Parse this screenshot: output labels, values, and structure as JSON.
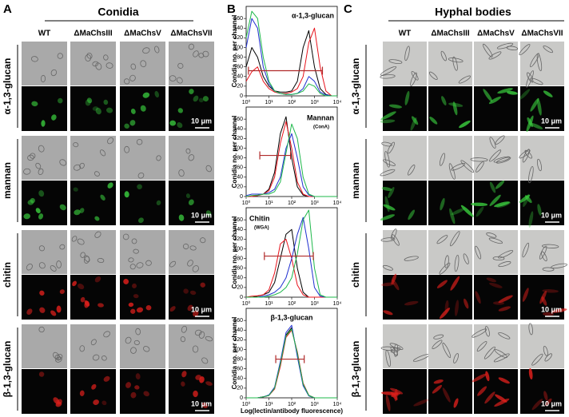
{
  "panel_a": {
    "label": "A",
    "title": "Conidia",
    "columns": [
      "WT",
      "ΔMaChsIII",
      "ΔMaChsV",
      "ΔMaChsVII"
    ],
    "rows": [
      "α-1,3-glucan",
      "mannan",
      "chitin",
      "β-1,3-glucan"
    ],
    "scale_bar": "10 μm"
  },
  "panel_b": {
    "label": "B",
    "y_label": "Conidia no. per channel",
    "x_label": "Log(lectin/antibody fluorescence)",
    "charts": [
      {
        "type": "line",
        "title": "α-1,3-glucan",
        "x": [
          0,
          0.25,
          0.5,
          0.75,
          1,
          1.25,
          1.5,
          1.75,
          2,
          2.25,
          2.5,
          2.75,
          3,
          3.25,
          3.5,
          3.75,
          4
        ],
        "xlim": [
          0,
          4
        ],
        "xticks": [
          {
            "value": 0,
            "label": "10⁰"
          },
          {
            "value": 1,
            "label": "10¹"
          },
          {
            "value": 2,
            "label": "10²"
          },
          {
            "value": 3,
            "label": "10³"
          },
          {
            "value": 4,
            "label": "10⁴"
          }
        ],
        "ylim": [
          0,
          185
        ],
        "yticks": [
          0,
          20,
          40,
          60,
          80,
          100,
          120,
          140,
          160
        ],
        "series": [
          {
            "color": "#000000",
            "values": [
              60,
              100,
              80,
              40,
              20,
              10,
              8,
              8,
              10,
              30,
              100,
              135,
              60,
              15,
              3,
              0,
              0
            ]
          },
          {
            "color": "#e8121b",
            "values": [
              30,
              50,
              60,
              30,
              15,
              8,
              5,
              5,
              8,
              15,
              40,
              110,
              140,
              60,
              10,
              0,
              0
            ]
          },
          {
            "color": "#1f2fd0",
            "values": [
              100,
              160,
              140,
              60,
              25,
              10,
              5,
              3,
              3,
              5,
              15,
              40,
              30,
              8,
              2,
              0,
              0
            ]
          },
          {
            "color": "#1db84a",
            "values": [
              120,
              175,
              160,
              80,
              30,
              10,
              5,
              3,
              3,
              5,
              10,
              25,
              20,
              5,
              0,
              0,
              0
            ]
          }
        ]
      },
      {
        "type": "line",
        "title": "Mannan",
        "subtitle": "(ConA)",
        "x": [
          0,
          0.25,
          0.5,
          0.75,
          1,
          1.25,
          1.5,
          1.75,
          2,
          2.25,
          2.5,
          2.75,
          3,
          3.25,
          3.5,
          3.75,
          4
        ],
        "xlim": [
          0,
          4
        ],
        "xticks": [
          {
            "value": 0,
            "label": "10⁰"
          },
          {
            "value": 1,
            "label": "10¹"
          },
          {
            "value": 2,
            "label": "10²"
          },
          {
            "value": 3,
            "label": "10³"
          },
          {
            "value": 4,
            "label": "10⁴"
          }
        ],
        "ylim": [
          0,
          185
        ],
        "yticks": [
          0,
          20,
          40,
          60,
          80,
          100,
          120,
          140,
          160
        ],
        "series": [
          {
            "color": "#000000",
            "values": [
              0,
              0,
              2,
              5,
              15,
              50,
              130,
              165,
              80,
              20,
              3,
              0,
              0,
              0,
              0,
              0,
              0
            ]
          },
          {
            "color": "#e8121b",
            "values": [
              0,
              0,
              2,
              5,
              12,
              40,
              110,
              155,
              100,
              30,
              5,
              0,
              0,
              0,
              0,
              0,
              0
            ]
          },
          {
            "color": "#1f2fd0",
            "values": [
              2,
              5,
              5,
              5,
              8,
              15,
              40,
              100,
              130,
              80,
              20,
              3,
              0,
              0,
              0,
              0,
              0
            ]
          },
          {
            "color": "#1db84a",
            "values": [
              0,
              2,
              3,
              5,
              5,
              10,
              30,
              90,
              150,
              120,
              40,
              5,
              0,
              0,
              0,
              0,
              0
            ]
          }
        ]
      },
      {
        "type": "line",
        "title": "Chitin",
        "subtitle": "(WGA)",
        "x": [
          0,
          0.25,
          0.5,
          0.75,
          1,
          1.25,
          1.5,
          1.75,
          2,
          2.25,
          2.5,
          2.75,
          3,
          3.25,
          3.5,
          3.75,
          4
        ],
        "xlim": [
          0,
          4
        ],
        "xticks": [
          {
            "value": 0,
            "label": "10⁰"
          },
          {
            "value": 1,
            "label": "10¹"
          },
          {
            "value": 2,
            "label": "10²"
          },
          {
            "value": 3,
            "label": "10³"
          },
          {
            "value": 4,
            "label": "10⁴"
          }
        ],
        "ylim": [
          0,
          185
        ],
        "yticks": [
          0,
          20,
          40,
          60,
          80,
          100,
          120,
          140,
          160
        ],
        "series": [
          {
            "color": "#000000",
            "values": [
              0,
              0,
              2,
              5,
              10,
              30,
              80,
              130,
              140,
              60,
              10,
              0,
              0,
              0,
              0,
              0,
              0
            ]
          },
          {
            "color": "#e8121b",
            "values": [
              0,
              2,
              3,
              5,
              15,
              50,
              110,
              120,
              80,
              25,
              5,
              0,
              0,
              0,
              0,
              0,
              0
            ]
          },
          {
            "color": "#1f2fd0",
            "values": [
              0,
              0,
              0,
              2,
              5,
              10,
              20,
              40,
              80,
              130,
              165,
              100,
              20,
              2,
              0,
              0,
              0
            ]
          },
          {
            "color": "#1db84a",
            "values": [
              0,
              0,
              0,
              0,
              2,
              5,
              10,
              20,
              40,
              90,
              160,
              180,
              60,
              5,
              0,
              0,
              0
            ]
          }
        ]
      },
      {
        "type": "line",
        "title": "β-1,3-glucan",
        "x": [
          0,
          0.25,
          0.5,
          0.75,
          1,
          1.25,
          1.5,
          1.75,
          2,
          2.25,
          2.5,
          2.75,
          3,
          3.25,
          3.5,
          3.75,
          4
        ],
        "xlim": [
          0,
          4
        ],
        "xticks": [
          {
            "value": 0,
            "label": "10⁰"
          },
          {
            "value": 1,
            "label": "10¹"
          },
          {
            "value": 2,
            "label": "10²"
          },
          {
            "value": 3,
            "label": "10³"
          },
          {
            "value": 4,
            "label": "10⁴"
          }
        ],
        "ylim": [
          0,
          185
        ],
        "yticks": [
          0,
          20,
          40,
          60,
          80,
          100,
          120,
          140,
          160
        ],
        "series": [
          {
            "color": "#000000",
            "values": [
              0,
              0,
              0,
              2,
              5,
              20,
              70,
              130,
              145,
              90,
              30,
              5,
              0,
              0,
              0,
              0,
              0
            ]
          },
          {
            "color": "#e8121b",
            "values": [
              0,
              0,
              0,
              2,
              5,
              18,
              65,
              125,
              140,
              95,
              30,
              5,
              0,
              0,
              0,
              0,
              0
            ]
          },
          {
            "color": "#1f2fd0",
            "values": [
              0,
              0,
              0,
              2,
              6,
              22,
              75,
              135,
              150,
              85,
              25,
              4,
              0,
              0,
              0,
              0,
              0
            ]
          },
          {
            "color": "#1db84a",
            "values": [
              0,
              0,
              0,
              2,
              5,
              20,
              70,
              128,
              142,
              92,
              28,
              5,
              0,
              0,
              0,
              0,
              0
            ]
          }
        ]
      }
    ]
  },
  "panel_c": {
    "label": "C",
    "title": "Hyphal bodies",
    "columns": [
      "WT",
      "ΔMaChsIII",
      "ΔMaChsV",
      "ΔMaChsVII"
    ],
    "rows": [
      "α-1,3-glucan",
      "mannan",
      "chitin",
      "β-1,3-glucan"
    ],
    "scale_bar": "10 μm"
  }
}
